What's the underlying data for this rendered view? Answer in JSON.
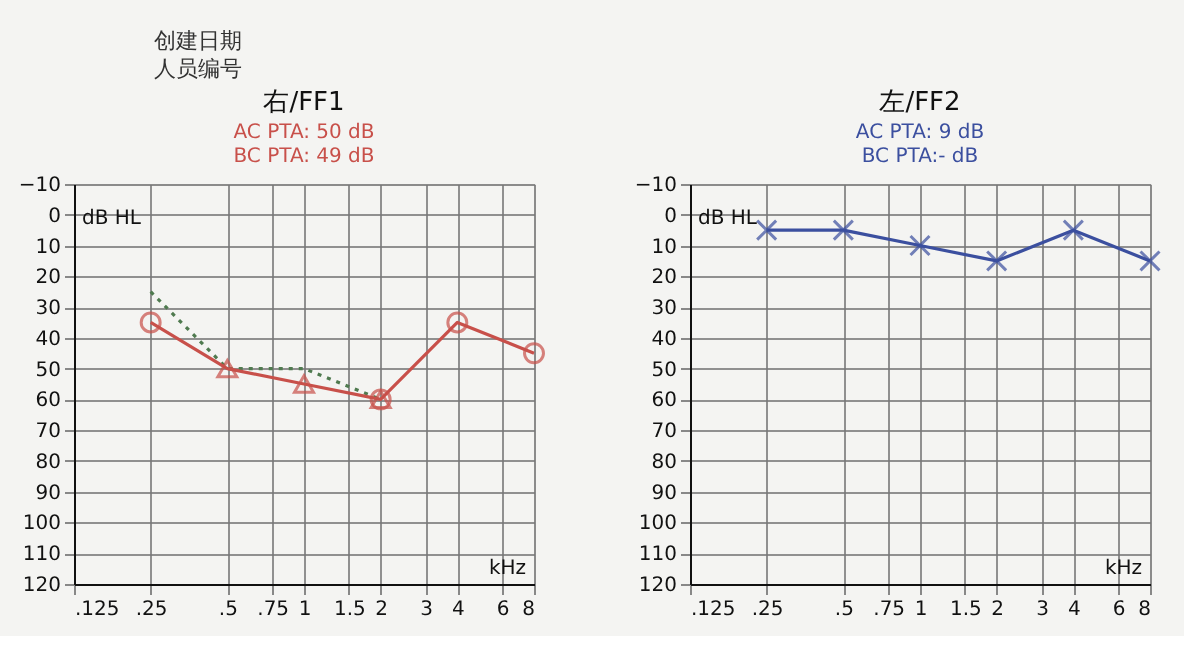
{
  "chart_data": [
    {
      "type": "other",
      "annotations": [
        "创建日期",
        "人员编号"
      ]
    },
    {
      "type": "line",
      "title": "右/FF1",
      "annotations": [
        "AC PTA: 50 dB",
        "BC PTA: 49 dB"
      ],
      "ylabel": "dB HL",
      "xlabel": "kHz",
      "log": "x",
      "grid": true,
      "xlim": [
        0.125,
        8
      ],
      "xticks": [
        {
          "value": 0.125,
          "label": ".125"
        },
        {
          "value": 0.25,
          "label": ".25"
        },
        {
          "value": 0.5,
          "label": ".5"
        },
        {
          "value": 0.75,
          "label": ".75"
        },
        1,
        1.5,
        2,
        3,
        4,
        6,
        8
      ],
      "ylim": [
        120,
        -10
      ],
      "yticks": [
        -10,
        0,
        10,
        20,
        30,
        40,
        50,
        60,
        70,
        80,
        90,
        100,
        110,
        120
      ],
      "series": [
        {
          "type": "line",
          "color": "#4f7a4f",
          "x": [
            0.25,
            0.5,
            1,
            2
          ],
          "values": [
            25,
            50,
            50,
            60
          ],
          "marker": "none",
          "line_style": "dotted"
        },
        {
          "type": "line",
          "color": "#c8504a",
          "x": [
            0.25,
            0.5,
            1,
            2,
            4,
            8
          ],
          "values": [
            35,
            50,
            55,
            60,
            35,
            45
          ],
          "marker": "none",
          "line_style": "solid"
        },
        {
          "type": "scatter",
          "color": "#c8504a",
          "x": [
            0.25,
            2,
            4,
            8
          ],
          "values": [
            35,
            60,
            35,
            45
          ],
          "marker": "circle"
        },
        {
          "type": "scatter",
          "color": "#c8504a",
          "x": [
            0.5,
            1,
            2
          ],
          "values": [
            50,
            55,
            60
          ],
          "marker": "triangle"
        }
      ]
    },
    {
      "type": "line",
      "title": "左/FF2",
      "annotations": [
        "AC PTA: 9 dB",
        "BC PTA:- dB"
      ],
      "ylabel": "dB HL",
      "xlabel": "kHz",
      "log": "x",
      "grid": true,
      "xlim": [
        0.125,
        8
      ],
      "xticks": [
        {
          "value": 0.125,
          "label": ".125"
        },
        {
          "value": 0.25,
          "label": ".25"
        },
        {
          "value": 0.5,
          "label": ".5"
        },
        {
          "value": 0.75,
          "label": ".75"
        },
        1,
        1.5,
        2,
        3,
        4,
        6,
        8
      ],
      "ylim": [
        120,
        -10
      ],
      "yticks": [
        -10,
        0,
        10,
        20,
        30,
        40,
        50,
        60,
        70,
        80,
        90,
        100,
        110,
        120
      ],
      "series": [
        {
          "type": "line",
          "color": "#3b4f9f",
          "x": [
            0.25,
            0.5,
            1,
            2,
            4,
            8
          ],
          "values": [
            5,
            5,
            10,
            15,
            5,
            15
          ],
          "marker": "cross",
          "line_style": "solid"
        }
      ]
    }
  ]
}
